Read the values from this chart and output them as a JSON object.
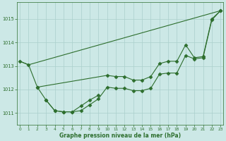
{
  "xlabel": "Graphe pression niveau de la mer (hPa)",
  "background_color": "#cce8e6",
  "grid_color": "#aacfcc",
  "line_color": "#2d6e2d",
  "ylim": [
    1010.5,
    1015.7
  ],
  "xlim": [
    -0.3,
    23.3
  ],
  "yticks": [
    1011,
    1012,
    1013,
    1014,
    1015
  ],
  "xticks": [
    0,
    1,
    2,
    3,
    4,
    5,
    6,
    7,
    8,
    9,
    10,
    11,
    12,
    13,
    14,
    15,
    16,
    17,
    18,
    19,
    20,
    21,
    22,
    23
  ],
  "series": [
    {
      "x": [
        0,
        1,
        23
      ],
      "y": [
        1013.2,
        1013.05,
        1015.35
      ],
      "marker": null,
      "markersize": 0
    },
    {
      "x": [
        2,
        3,
        4,
        5,
        6,
        7,
        8,
        9,
        10,
        11,
        12,
        13,
        14,
        15,
        16,
        17,
        18,
        19,
        20,
        21,
        22,
        23
      ],
      "y": [
        1012.1,
        1011.55,
        1011.1,
        1011.05,
        1011.05,
        1011.1,
        1011.35,
        1011.6,
        1012.1,
        1012.05,
        1012.05,
        1011.95,
        1011.95,
        1012.05,
        1012.65,
        1012.7,
        1012.7,
        1013.45,
        1013.3,
        1013.35,
        1014.95,
        1015.35
      ],
      "marker": "D",
      "markersize": 2.5
    },
    {
      "x": [
        0,
        1,
        2,
        10,
        11,
        12,
        13,
        14,
        15,
        16,
        17,
        18,
        19,
        20,
        21,
        22,
        23
      ],
      "y": [
        1013.2,
        1013.05,
        1012.1,
        1012.6,
        1012.55,
        1012.55,
        1012.4,
        1012.4,
        1012.55,
        1013.1,
        1013.2,
        1013.2,
        1013.9,
        1013.35,
        1013.4,
        1015.0,
        1015.35
      ],
      "marker": "D",
      "markersize": 2.5
    },
    {
      "x": [
        3,
        4,
        5,
        6,
        7,
        8,
        9
      ],
      "y": [
        1011.55,
        1011.1,
        1011.05,
        1011.05,
        1011.3,
        1011.55,
        1011.75
      ],
      "marker": "D",
      "markersize": 2.5
    }
  ]
}
